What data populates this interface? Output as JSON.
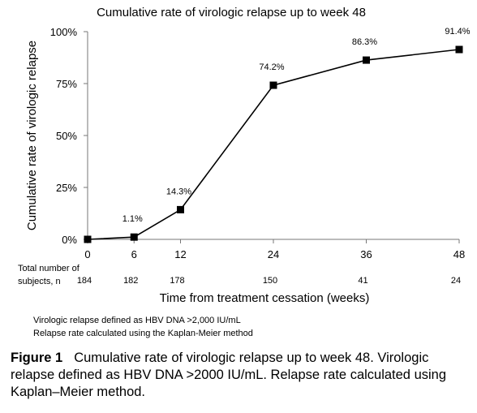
{
  "chart_data": {
    "type": "line",
    "title": "Cumulative rate of virologic relapse up to week 48",
    "xlabel": "Time from treatment cessation (weeks)",
    "ylabel": "Cumulative rate of virologic relapse",
    "x": [
      0,
      6,
      12,
      24,
      36,
      48
    ],
    "values": [
      0,
      1.1,
      14.3,
      74.2,
      86.3,
      91.4
    ],
    "data_labels": [
      "",
      "1.1%",
      "14.3%",
      "74.2%",
      "86.3%",
      "91.4%"
    ],
    "xlim": [
      0,
      48
    ],
    "ylim": [
      0,
      100
    ],
    "x_ticks": [
      "0",
      "6",
      "12",
      "24",
      "36",
      "48"
    ],
    "y_ticks": [
      "0%",
      "25%",
      "50%",
      "75%",
      "100%"
    ],
    "y_tick_values": [
      0,
      25,
      50,
      75,
      100
    ],
    "grid": false,
    "marker": "square",
    "series_color": "#000000",
    "subjects_label_line1": "Total number of",
    "subjects_label_line2": "subjects, n",
    "subjects": [
      "184",
      "182",
      "178",
      "150",
      "41",
      "24"
    ]
  },
  "notes": [
    "Virologic relapse defined as HBV DNA >2,000 IU/mL",
    "Relapse rate calculated using the Kaplan-Meier method"
  ],
  "caption": {
    "label": "Figure 1",
    "text": "Cumulative rate of virologic relapse up to week 48. Virologic relapse defined as HBV DNA >2000 IU/mL. Relapse rate calculated using Kaplan–Meier method."
  }
}
